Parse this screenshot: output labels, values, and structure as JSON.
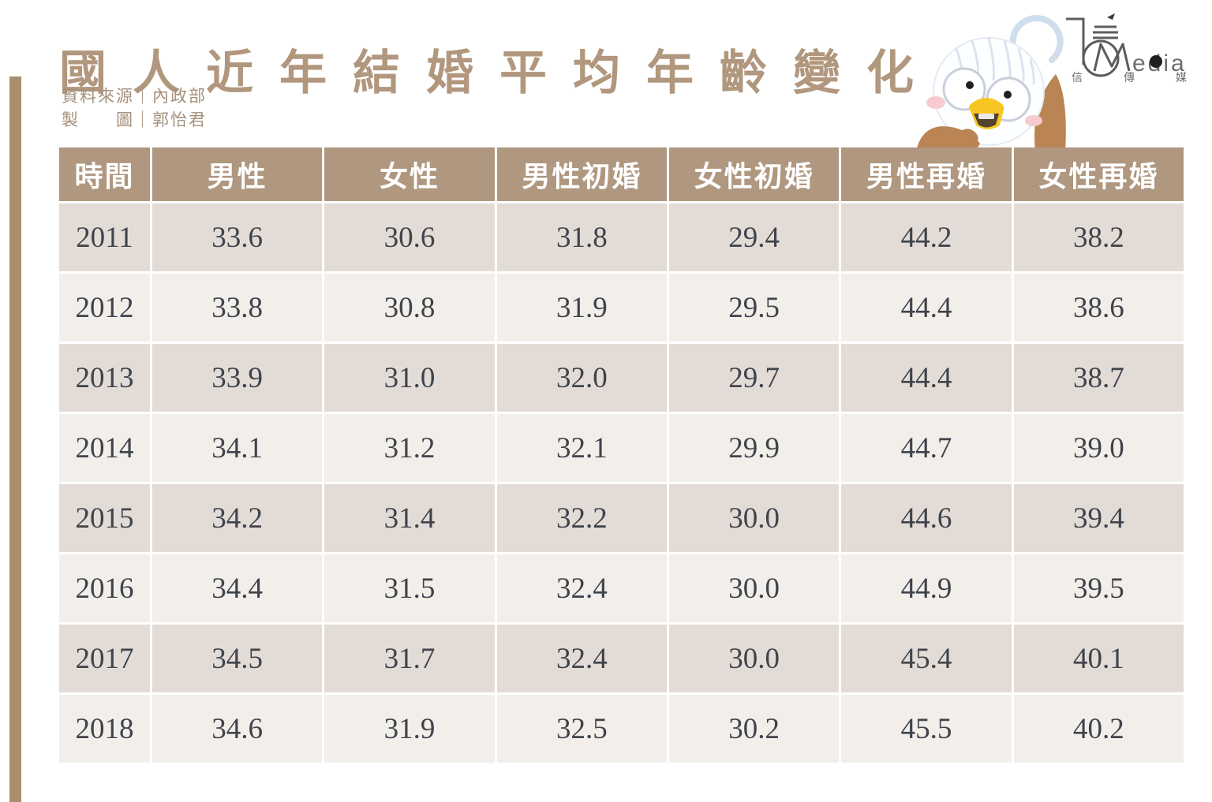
{
  "page": {
    "title": "國人近年結婚平均年齡變化",
    "source_label": "資料來源｜內政部",
    "credit_label": "製　　圖｜郭怡君"
  },
  "logo": {
    "monogram_letter": "M",
    "media_text": "edia",
    "cjk": "信傳媒"
  },
  "table": {
    "headers": [
      "時間",
      "男性",
      "女性",
      "男性初婚",
      "女性初婚",
      "男性再婚",
      "女性再婚"
    ],
    "rows": [
      {
        "year": "2011",
        "values": [
          "33.6",
          "30.6",
          "31.8",
          "29.4",
          "44.2",
          "38.2"
        ]
      },
      {
        "year": "2012",
        "values": [
          "33.8",
          "30.8",
          "31.9",
          "29.5",
          "44.4",
          "38.6"
        ]
      },
      {
        "year": "2013",
        "values": [
          "33.9",
          "31.0",
          "32.0",
          "29.7",
          "44.4",
          "38.7"
        ]
      },
      {
        "year": "2014",
        "values": [
          "34.1",
          "31.2",
          "32.1",
          "29.9",
          "44.7",
          "39.0"
        ]
      },
      {
        "year": "2015",
        "values": [
          "34.2",
          "31.4",
          "32.2",
          "30.0",
          "44.6",
          "39.4"
        ]
      },
      {
        "year": "2016",
        "values": [
          "34.4",
          "31.5",
          "32.4",
          "30.0",
          "44.9",
          "39.5"
        ]
      },
      {
        "year": "2017",
        "values": [
          "34.5",
          "31.7",
          "32.4",
          "30.0",
          "45.4",
          "40.1"
        ]
      },
      {
        "year": "2018",
        "values": [
          "34.6",
          "31.9",
          "32.5",
          "30.2",
          "45.5",
          "40.2"
        ]
      }
    ]
  },
  "chart_data": {
    "type": "table",
    "title": "國人近年結婚平均年齡變化",
    "source": "資料來源｜內政部",
    "credit": "製圖｜郭怡君",
    "columns": [
      "時間",
      "男性",
      "女性",
      "男性初婚",
      "女性初婚",
      "男性再婚",
      "女性再婚"
    ],
    "rows": [
      [
        2011,
        33.6,
        30.6,
        31.8,
        29.4,
        44.2,
        38.2
      ],
      [
        2012,
        33.8,
        30.8,
        31.9,
        29.5,
        44.4,
        38.6
      ],
      [
        2013,
        33.9,
        31.0,
        32.0,
        29.7,
        44.4,
        38.7
      ],
      [
        2014,
        34.1,
        31.2,
        32.1,
        29.9,
        44.7,
        39.0
      ],
      [
        2015,
        34.2,
        31.4,
        32.2,
        30.0,
        44.6,
        39.4
      ],
      [
        2016,
        34.4,
        31.5,
        32.4,
        30.0,
        44.9,
        39.5
      ],
      [
        2017,
        34.5,
        31.7,
        32.4,
        30.0,
        45.4,
        40.1
      ],
      [
        2018,
        34.6,
        31.9,
        32.5,
        30.2,
        45.5,
        40.2
      ]
    ]
  },
  "colors": {
    "accent_tan": "#b09780",
    "row_dark": "#e3dcd6",
    "row_light": "#f2eeea",
    "title_tan": "#b1977d",
    "text_dark": "#3f434b",
    "left_bar": "#a98e70",
    "mascot_brown": "#bb8454",
    "beak_yellow": "#f8c623"
  }
}
